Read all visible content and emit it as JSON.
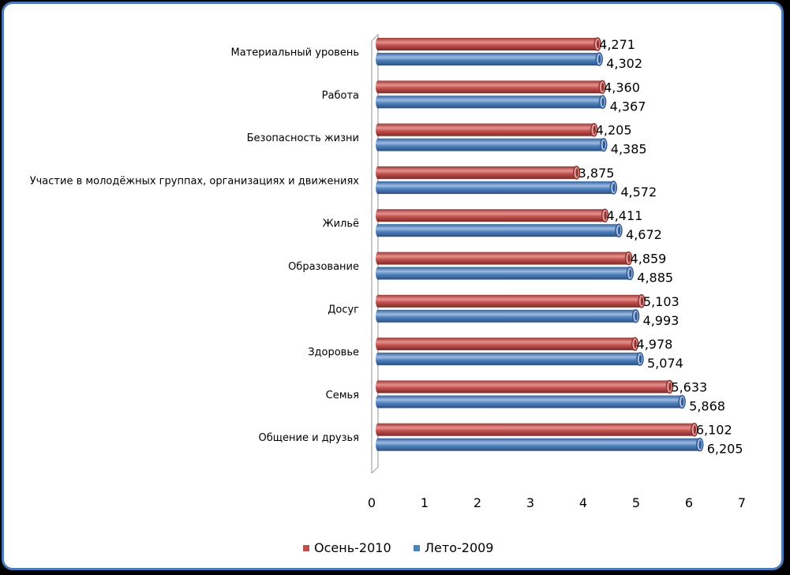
{
  "chart_data": {
    "type": "bar",
    "orientation": "horizontal",
    "categories": [
      "Материальный уровень",
      "Работа",
      "Безопасность жизни",
      "Участие в молодёжных группах, организациях и движениях",
      "Жильё",
      "Образование",
      "Досуг",
      "Здоровье",
      "Семья",
      "Общение и друзья"
    ],
    "series": [
      {
        "name": "Осень-2010",
        "color": "#c0504d",
        "values": [
          4.271,
          4.36,
          4.205,
          3.875,
          4.411,
          4.859,
          5.103,
          4.978,
          5.633,
          6.102
        ],
        "labels": [
          "4,271",
          "4,360",
          "4,205",
          "3,875",
          "4,411",
          "4,859",
          "5,103",
          "4,978",
          "5,633",
          "6,102"
        ]
      },
      {
        "name": "Лето-2009",
        "color": "#4f81bd",
        "values": [
          4.302,
          4.367,
          4.385,
          4.572,
          4.672,
          4.885,
          4.993,
          5.074,
          5.868,
          6.205
        ],
        "labels": [
          "4,302",
          "4,367",
          "4,385",
          "4,572",
          "4,672",
          "4,885",
          "4,993",
          "5,074",
          "5,868",
          "6,205"
        ]
      }
    ],
    "xlim": [
      0,
      7
    ],
    "xticks": [
      "0",
      "1",
      "2",
      "3",
      "4",
      "5",
      "6",
      "7"
    ],
    "legend_position": "bottom",
    "grid": false
  }
}
